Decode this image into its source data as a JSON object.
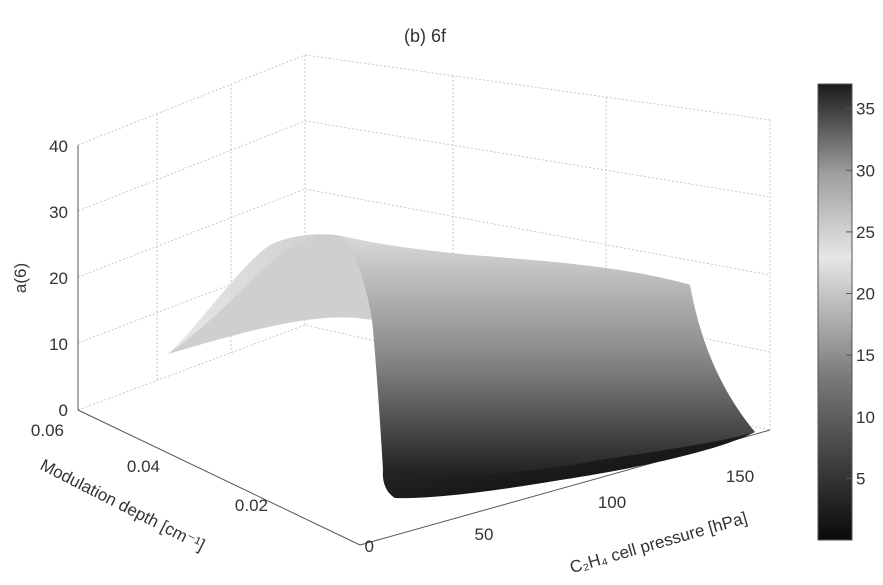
{
  "chart_data": {
    "type": "surface",
    "title": "(b) 6f",
    "zlabel": "a(6)",
    "xlabel": "C₂H₄ cell pressure [hPa]",
    "ylabel": "Modulation depth [cm⁻¹]",
    "x_ticks": [
      "50",
      "100",
      "150"
    ],
    "x_tick_values": [
      50,
      100,
      150
    ],
    "y_ticks": [
      "0",
      "0.02",
      "0.04",
      "0.06"
    ],
    "y_tick_values": [
      0,
      0.02,
      0.04,
      0.06
    ],
    "z_ticks": [
      "0",
      "10",
      "20",
      "30",
      "40"
    ],
    "z_tick_values": [
      0,
      10,
      20,
      30,
      40
    ],
    "xlim": [
      20,
      170
    ],
    "ylim": [
      0,
      0.06
    ],
    "zlim": [
      0,
      40
    ],
    "colorbar": {
      "ticks": [
        "5",
        "10",
        "15",
        "20",
        "25",
        "30",
        "35"
      ],
      "values": [
        5,
        10,
        15,
        20,
        25,
        30,
        35
      ],
      "range": [
        0,
        37
      ],
      "colormap": "gray"
    },
    "surface_samples": [
      {
        "pressure": 20,
        "depth": 0.06,
        "value": 10
      },
      {
        "pressure": 20,
        "depth": 0.04,
        "value": 26
      },
      {
        "pressure": 20,
        "depth": 0.02,
        "value": 12
      },
      {
        "pressure": 20,
        "depth": 0.0,
        "value": 0
      },
      {
        "pressure": 150,
        "depth": 0.06,
        "value": 0
      },
      {
        "pressure": 150,
        "depth": 0.04,
        "value": 1
      },
      {
        "pressure": 150,
        "depth": 0.02,
        "value": 23
      },
      {
        "pressure": 150,
        "depth": 0.0,
        "value": 0
      }
    ],
    "grid": true
  },
  "colors": {
    "background": "#ffffff",
    "grid": "#bdbdbd",
    "surface_high": "#f2f2f2",
    "surface_low": "#111111"
  }
}
